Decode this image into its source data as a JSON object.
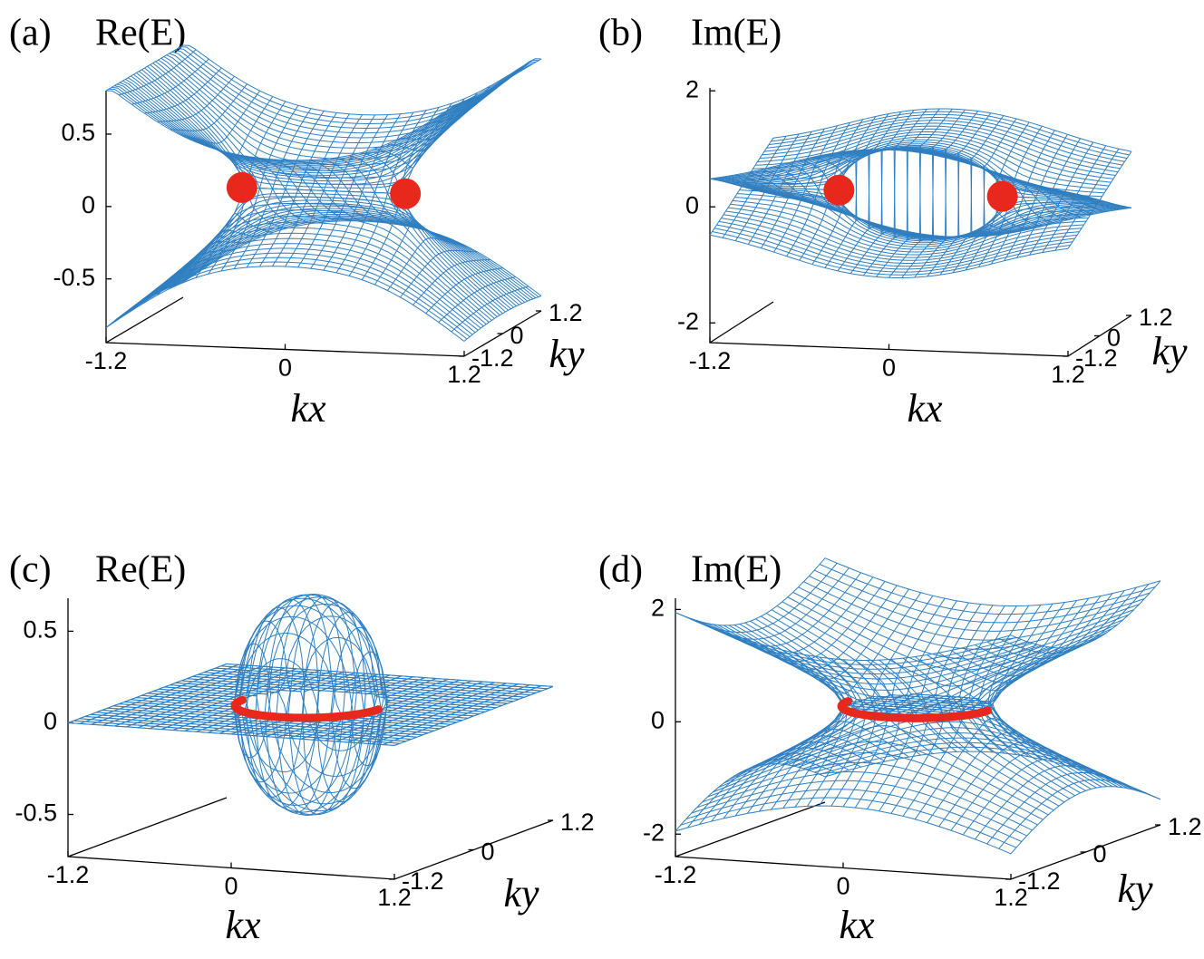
{
  "chart_data": [
    {
      "type": "surface",
      "panel": "(a)",
      "title": "Re(E)",
      "quantity": "re",
      "model": "ep-pair",
      "xlabel": "kx",
      "ylabel": "ky",
      "xlim": [
        -1.2,
        1.2
      ],
      "ylim": [
        -1.2,
        1.2
      ],
      "zlim": [
        -0.94,
        0.8
      ],
      "xticks": [
        -1.2,
        0,
        1.2
      ],
      "yticks": [
        -1.2,
        0,
        1.2
      ],
      "zticks": [
        -0.5,
        0,
        0.5
      ],
      "color": "#2f7fc1",
      "highlight_color": "#e8281c"
    },
    {
      "type": "surface",
      "panel": "(b)",
      "title": "Im(E)",
      "quantity": "im",
      "model": "ep-pair",
      "xlabel": "kx",
      "ylabel": "ky",
      "xlim": [
        -1.2,
        1.2
      ],
      "ylim": [
        -1.2,
        1.2
      ],
      "zlim": [
        -2.34,
        2.05
      ],
      "xticks": [
        -1.2,
        0,
        1.2
      ],
      "yticks": [
        -1.2,
        0,
        1.2
      ],
      "zticks": [
        -2,
        0,
        2
      ],
      "color": "#2f7fc1",
      "highlight_color": "#e8281c"
    },
    {
      "type": "surface",
      "panel": "(c)",
      "title": "Re(E)",
      "quantity": "re",
      "model": "ep-ring",
      "xlabel": "kx",
      "ylabel": "ky",
      "xlim": [
        -1.2,
        1.2
      ],
      "ylim": [
        -1.2,
        1.2
      ],
      "zlim": [
        -0.73,
        0.68
      ],
      "xticks": [
        -1.2,
        0,
        1.2
      ],
      "yticks": [
        -1.2,
        0,
        1.2
      ],
      "zticks": [
        -0.5,
        0,
        0.5
      ],
      "color": "#2f7fc1",
      "highlight_color": "#e8281c"
    },
    {
      "type": "surface",
      "panel": "(d)",
      "title": "Im(E)",
      "quantity": "im",
      "model": "ep-ring",
      "xlabel": "kx",
      "ylabel": "ky",
      "xlim": [
        -1.2,
        1.2
      ],
      "ylim": [
        -1.2,
        1.2
      ],
      "zlim": [
        -2.4,
        2.2
      ],
      "xticks": [
        -1.2,
        0,
        1.2
      ],
      "yticks": [
        -1.2,
        0,
        1.2
      ],
      "zticks": [
        -2,
        0,
        2
      ],
      "color": "#2f7fc1",
      "highlight_color": "#e8281c"
    }
  ]
}
